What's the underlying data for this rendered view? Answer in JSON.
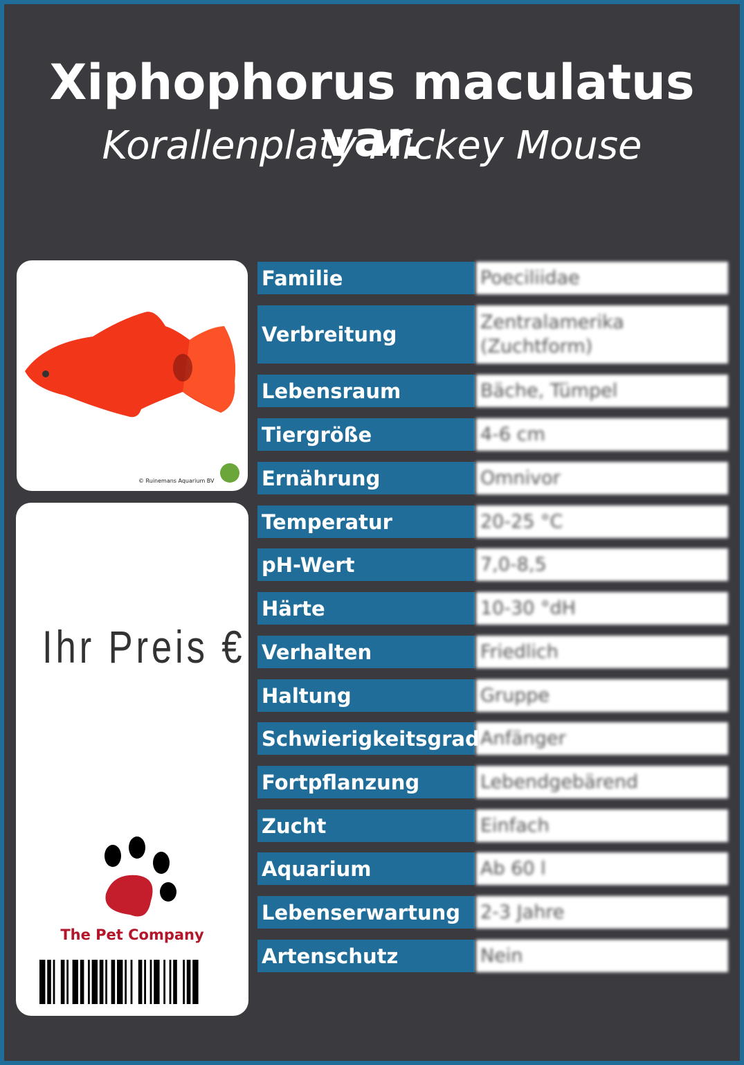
{
  "header": {
    "title": "Xiphophorus maculatus var.",
    "subtitle": "Korallenplaty Mickey Mouse"
  },
  "photo": {
    "credit": "© Ruinemans Aquarium BV"
  },
  "price": {
    "label": "Ihr Preis €"
  },
  "brand": {
    "name": "The Pet Company"
  },
  "table": {
    "rows": [
      [
        "Familie",
        "Poeciliidae"
      ],
      [
        "Verbreitung",
        "Zentralamerika (Zuchtform)"
      ],
      [
        "Lebensraum",
        "Bäche, Tümpel"
      ],
      [
        "Tiergröße",
        "4-6 cm"
      ],
      [
        "Ernährung",
        "Omnivor"
      ],
      [
        "Temperatur",
        "20-25 °C"
      ],
      [
        "pH-Wert",
        "7,0-8,5"
      ],
      [
        "Härte",
        "10-30 °dH"
      ],
      [
        "Verhalten",
        "Friedlich"
      ],
      [
        "Haltung",
        "Gruppe"
      ],
      [
        "Schwierigkeitsgrad",
        "Anfänger"
      ],
      [
        "Fortpflanzung",
        "Lebendgebärend"
      ],
      [
        "Zucht",
        "Einfach"
      ],
      [
        "Aquarium",
        "Ab 60 l"
      ],
      [
        "Lebenserwartung",
        "2-3 Jahre"
      ],
      [
        "Artenschutz",
        "Nein"
      ]
    ]
  }
}
